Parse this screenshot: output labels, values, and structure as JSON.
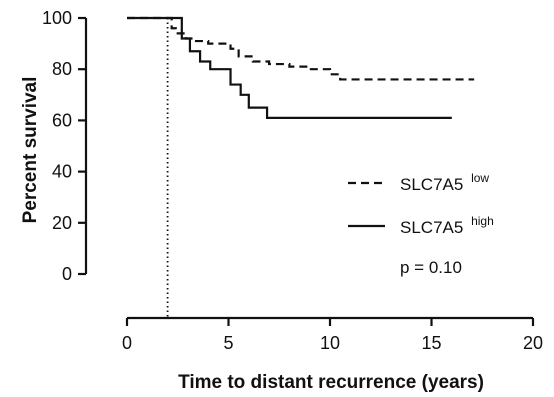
{
  "chart_data": {
    "type": "line",
    "step": true,
    "xlabel": "Time to distant recurrence (years)",
    "ylabel": "Percent survival",
    "xlim": [
      0,
      20
    ],
    "ylim": [
      0,
      100
    ],
    "x_ticks": [
      0,
      5,
      10,
      15,
      20
    ],
    "y_ticks": [
      0,
      20,
      40,
      60,
      80,
      100
    ],
    "grid": false,
    "legend_position": "right",
    "reference_line": {
      "x": 2,
      "style": "dotted"
    },
    "series": [
      {
        "name_base": "SLC7A5",
        "name_sup": "low",
        "style": "dashed",
        "x": [
          0,
          2.2,
          2.4,
          2.9,
          3.3,
          4.0,
          5.1,
          5.5,
          6.2,
          7.0,
          8.0,
          9.0,
          10.0,
          10.5,
          17.1
        ],
        "y": [
          100,
          96,
          94,
          92,
          91,
          90,
          88,
          85,
          83,
          82,
          81,
          80,
          78,
          76,
          76
        ]
      },
      {
        "name_base": "SLC7A5",
        "name_sup": "high",
        "style": "solid",
        "x": [
          0,
          2.7,
          3.1,
          3.6,
          4.1,
          5.1,
          5.6,
          6.0,
          6.4,
          6.9,
          16.0
        ],
        "y": [
          100,
          92,
          87,
          83,
          80,
          74,
          70,
          65,
          65,
          61,
          61
        ]
      }
    ],
    "annotation": "p = 0.10"
  }
}
